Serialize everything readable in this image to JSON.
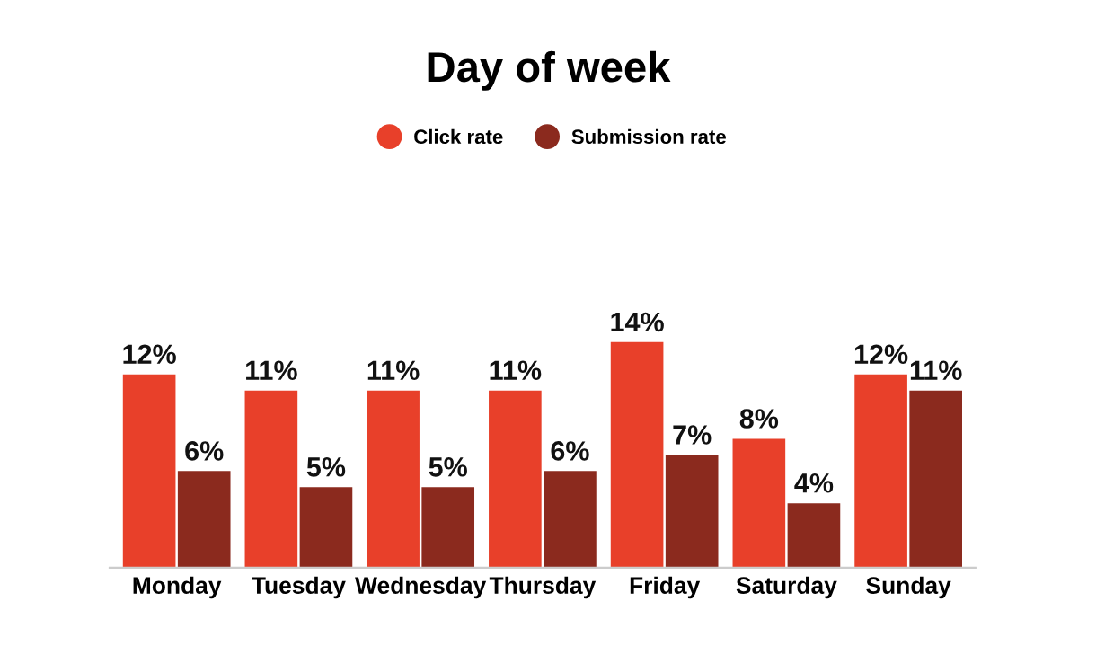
{
  "chart_data": {
    "type": "bar",
    "title": "Day of week",
    "categories": [
      "Monday",
      "Tuesday",
      "Wednesday",
      "Thursday",
      "Friday",
      "Saturday",
      "Sunday"
    ],
    "series": [
      {
        "name": "Click rate",
        "color": "#e8402a",
        "values": [
          12,
          11,
          11,
          11,
          14,
          8,
          12
        ],
        "value_labels": [
          "12%",
          "11%",
          "11%",
          "11%",
          "14%",
          "8%",
          "12%"
        ]
      },
      {
        "name": "Submission rate",
        "color": "#8b2a1e",
        "values": [
          6,
          5,
          5,
          6,
          7,
          4,
          11
        ],
        "value_labels": [
          "6%",
          "5%",
          "5%",
          "6%",
          "7%",
          "4%",
          "11%"
        ]
      }
    ],
    "legend": "top",
    "grid": false,
    "tick_labels": "x"
  }
}
